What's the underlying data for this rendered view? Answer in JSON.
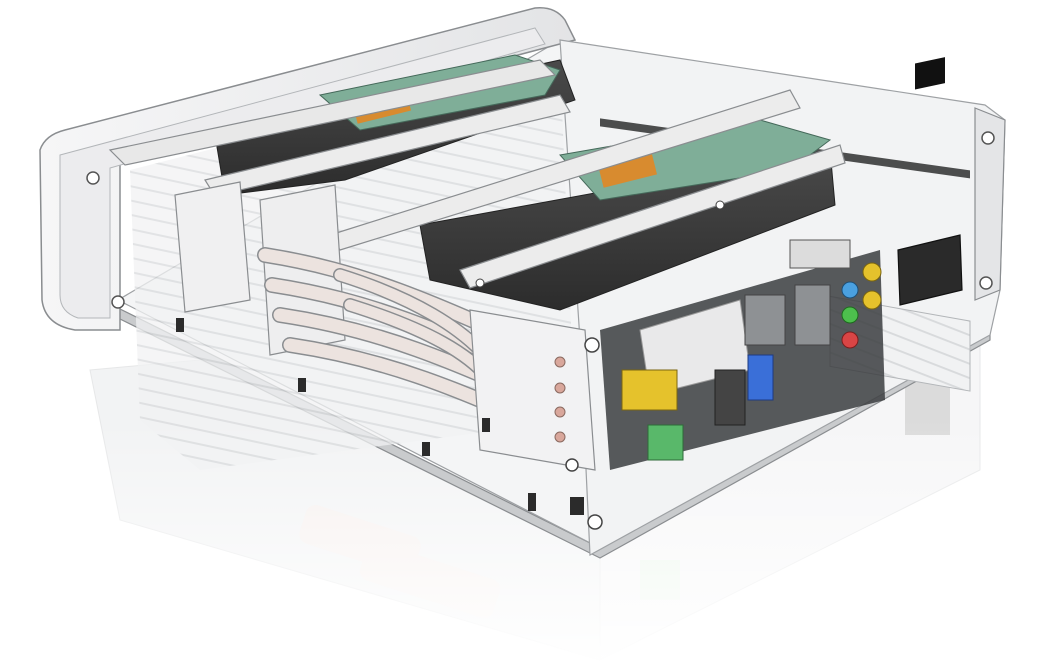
{
  "scene": {
    "subject": "fanless-pc-case-cutaway",
    "colors": {
      "background": "#ffffff",
      "chassis": "#eeeff0",
      "chassis_edge": "#8a8d90",
      "bracket": "#e8e8e8",
      "drive_body": "#3a3a3a",
      "drive_pcb": "#7fae98",
      "heatpipe": "#ece3df",
      "heatpipe_tip": "#d9a79b",
      "port_yellow": "#e5c22c",
      "port_green": "#59b86a",
      "port_blue": "#3a6fd8",
      "audio_red": "#d94545",
      "audio_green": "#4dbf4d",
      "audio_blue": "#4aa0e0",
      "power_socket": "#2a2a2a"
    },
    "icons": [
      "screw-icon",
      "power-inlet-icon",
      "usb-port-icon",
      "ethernet-port-icon",
      "audio-jack-icon"
    ]
  }
}
